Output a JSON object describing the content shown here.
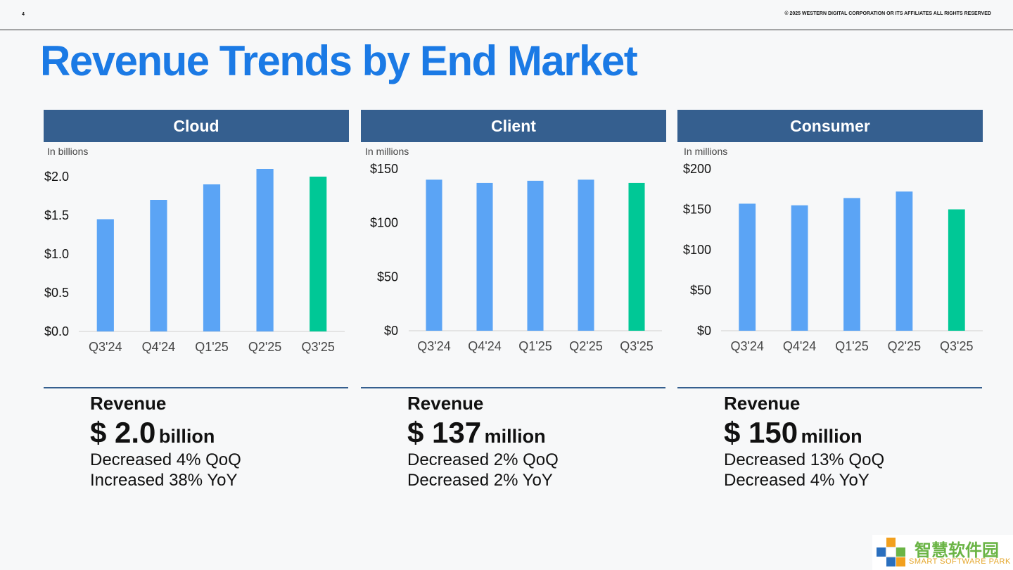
{
  "header": {
    "page_number": "4",
    "copyright": "© 2025 WESTERN DIGITAL CORPORATION OR ITS AFFILIATES  ALL RIGHTS RESERVED"
  },
  "title": "Revenue Trends by End Market",
  "colors": {
    "bar": "#5ba4f5",
    "highlight": "#00c896",
    "header": "#355f8f",
    "title": "#1b7ae5"
  },
  "chart_data": [
    {
      "type": "bar",
      "title": "Cloud",
      "unit_note": "In billions",
      "categories": [
        "Q3'24",
        "Q4'24",
        "Q1'25",
        "Q2'25",
        "Q3'25"
      ],
      "values": [
        1.45,
        1.7,
        1.9,
        2.1,
        2.0
      ],
      "highlight_index": 4,
      "ylim": [
        0,
        2.0
      ],
      "yticks": [
        0,
        0.5,
        1.0,
        1.5,
        2.0
      ],
      "ytick_labels": [
        "$0.0",
        "$0.5",
        "$1.0",
        "$1.5",
        "$2.0"
      ],
      "grid": false
    },
    {
      "type": "bar",
      "title": "Client",
      "unit_note": "In millions",
      "categories": [
        "Q3'24",
        "Q4'24",
        "Q1'25",
        "Q2'25",
        "Q3'25"
      ],
      "values": [
        140,
        137,
        139,
        140,
        137
      ],
      "highlight_index": 4,
      "ylim": [
        0,
        150
      ],
      "yticks": [
        0,
        50,
        100,
        150
      ],
      "ytick_labels": [
        "$0",
        "$50",
        "$100",
        "$150"
      ],
      "grid": false
    },
    {
      "type": "bar",
      "title": "Consumer",
      "unit_note": "In millions",
      "categories": [
        "Q3'24",
        "Q4'24",
        "Q1'25",
        "Q2'25",
        "Q3'25"
      ],
      "values": [
        157,
        155,
        164,
        172,
        150
      ],
      "highlight_index": 4,
      "ylim": [
        0,
        200
      ],
      "yticks": [
        0,
        50,
        100,
        150,
        200
      ],
      "ytick_labels": [
        "$0",
        "$50",
        "$100",
        "$150",
        "$200"
      ],
      "grid": false
    }
  ],
  "summaries": [
    {
      "label": "Revenue",
      "value": "$ 2.0",
      "unit": "billion",
      "line1": "Decreased 4% QoQ",
      "line2": "Increased 38% YoY"
    },
    {
      "label": "Revenue",
      "value": "$ 137",
      "unit": "million",
      "line1": "Decreased 2% QoQ",
      "line2": "Decreased 2% YoY"
    },
    {
      "label": "Revenue",
      "value": "$ 150",
      "unit": "million",
      "line1": "Decreased 13% QoQ",
      "line2": "Decreased 4% YoY"
    }
  ],
  "watermark": {
    "cn": "智慧软件园",
    "en": "SMART SOFTWARE PARK"
  }
}
